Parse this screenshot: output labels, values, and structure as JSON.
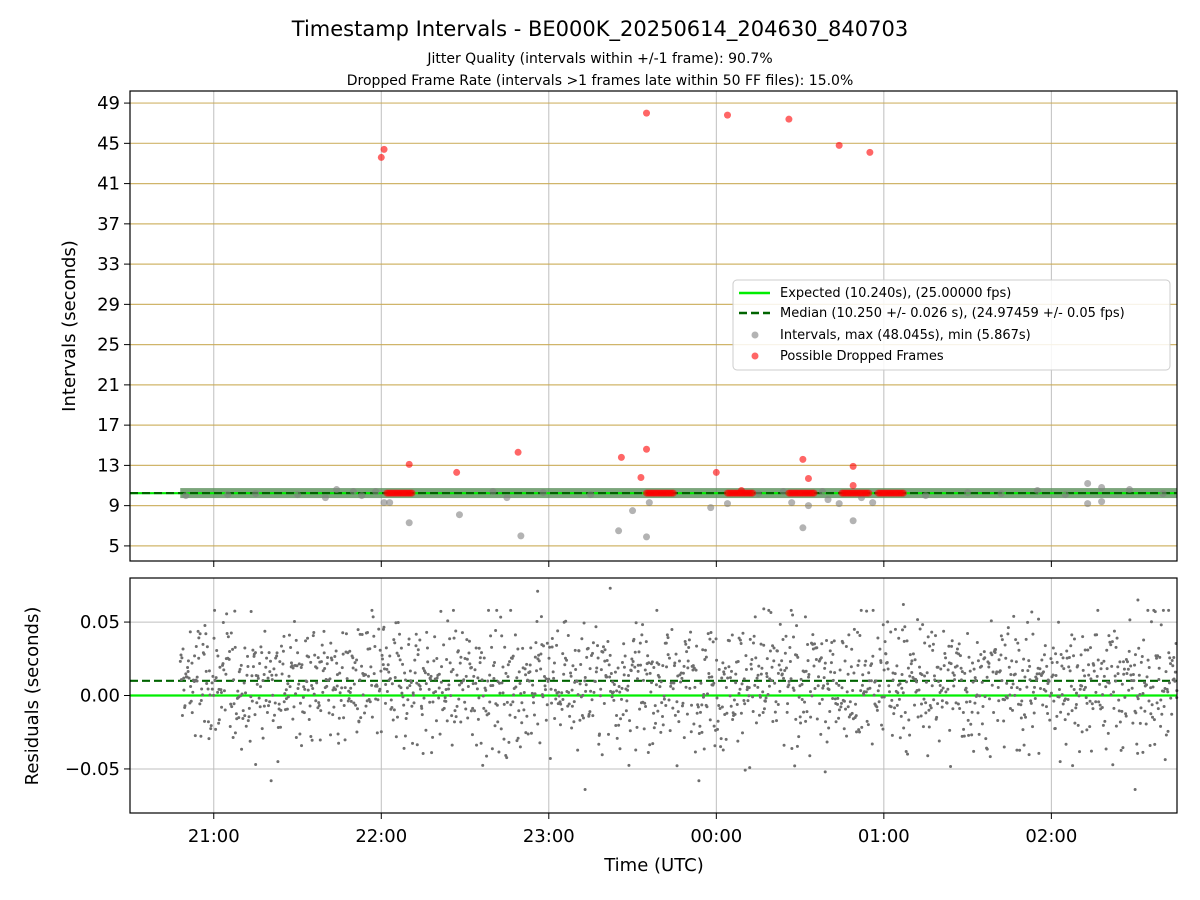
{
  "title": "Timestamp Intervals - BE000K_20250614_204630_840703",
  "subtitle_line1": "Jitter Quality (intervals within +/-1 frame): 90.7%",
  "subtitle_line2": "Dropped Frame Rate (intervals >1 frames late within 50 FF files): 15.0%",
  "colors": {
    "expected": "#00ee00",
    "median": "#006400",
    "intervals": "#808080",
    "dropped": "#ff0000",
    "hgrid_top": "#c8a850",
    "grid": "#bfbfbf"
  },
  "chart_data": [
    {
      "type": "scatter",
      "name": "intervals-panel",
      "ylabel": "Intervals (seconds)",
      "ylim": [
        3.5,
        50.2
      ],
      "xlim_hours": [
        20.5,
        26.75
      ],
      "yticks": [
        5,
        9,
        13,
        17,
        21,
        25,
        29,
        33,
        37,
        41,
        45,
        49
      ],
      "ytick_labels": [
        "5",
        "9",
        "13",
        "17",
        "21",
        "25",
        "29",
        "33",
        "37",
        "41",
        "45",
        "49"
      ],
      "grid": true,
      "legend_position": "center-right",
      "legend": [
        "Expected (10.240s), (25.00000 fps)",
        "Median (10.250 +/- 0.026 s), (24.97459 +/- 0.05 fps)",
        "Intervals, max (48.045s), min (5.867s)",
        "Possible Dropped Frames"
      ],
      "expected_interval": 10.24,
      "median_interval": 10.25,
      "band_x_range": [
        "20:48",
        "02:45"
      ],
      "dense_cluster_value": 10.25,
      "dropped_runs": [
        [
          "22:02",
          "22:11"
        ],
        [
          "23:35",
          "23:45"
        ],
        [
          "00:04",
          "00:13"
        ],
        [
          "00:26",
          "00:35"
        ],
        [
          "00:45",
          "00:55"
        ],
        [
          "00:58",
          "01:07"
        ]
      ],
      "grey_outliers": [
        {
          "x": "20:50",
          "y": 10.0
        },
        {
          "x": "21:05",
          "y": 10.1
        },
        {
          "x": "21:15",
          "y": 10.2
        },
        {
          "x": "21:30",
          "y": 10.1
        },
        {
          "x": "21:40",
          "y": 9.8
        },
        {
          "x": "21:44",
          "y": 10.6
        },
        {
          "x": "21:50",
          "y": 10.4
        },
        {
          "x": "21:53",
          "y": 10.0
        },
        {
          "x": "21:58",
          "y": 10.4
        },
        {
          "x": "22:01",
          "y": 9.3
        },
        {
          "x": "22:03",
          "y": 9.3
        },
        {
          "x": "22:10",
          "y": 7.3
        },
        {
          "x": "22:28",
          "y": 8.1
        },
        {
          "x": "22:40",
          "y": 10.4
        },
        {
          "x": "22:45",
          "y": 9.8
        },
        {
          "x": "22:50",
          "y": 6.0
        },
        {
          "x": "22:58",
          "y": 10.3
        },
        {
          "x": "23:15",
          "y": 10.1
        },
        {
          "x": "23:25",
          "y": 6.5
        },
        {
          "x": "23:30",
          "y": 8.5
        },
        {
          "x": "23:35",
          "y": 5.9
        },
        {
          "x": "23:36",
          "y": 9.3
        },
        {
          "x": "23:58",
          "y": 8.8
        },
        {
          "x": "00:04",
          "y": 9.2
        },
        {
          "x": "00:15",
          "y": 10.2
        },
        {
          "x": "00:24",
          "y": 10.4
        },
        {
          "x": "00:27",
          "y": 9.3
        },
        {
          "x": "00:31",
          "y": 6.8
        },
        {
          "x": "00:33",
          "y": 9.0
        },
        {
          "x": "00:38",
          "y": 10.4
        },
        {
          "x": "00:40",
          "y": 9.6
        },
        {
          "x": "00:44",
          "y": 9.2
        },
        {
          "x": "00:49",
          "y": 7.5
        },
        {
          "x": "00:52",
          "y": 9.8
        },
        {
          "x": "00:56",
          "y": 9.3
        },
        {
          "x": "01:15",
          "y": 10.0
        },
        {
          "x": "01:30",
          "y": 10.3
        },
        {
          "x": "01:42",
          "y": 10.2
        },
        {
          "x": "01:55",
          "y": 10.5
        },
        {
          "x": "02:05",
          "y": 10.1
        },
        {
          "x": "02:13",
          "y": 11.2
        },
        {
          "x": "02:13",
          "y": 9.2
        },
        {
          "x": "02:18",
          "y": 10.8
        },
        {
          "x": "02:18",
          "y": 9.4
        },
        {
          "x": "02:28",
          "y": 10.6
        },
        {
          "x": "02:40",
          "y": 10.2
        }
      ],
      "red_outliers": [
        {
          "x": "22:00",
          "y": 43.6
        },
        {
          "x": "22:01",
          "y": 44.4
        },
        {
          "x": "22:10",
          "y": 13.1
        },
        {
          "x": "22:27",
          "y": 12.3
        },
        {
          "x": "22:49",
          "y": 14.3
        },
        {
          "x": "23:26",
          "y": 13.8
        },
        {
          "x": "23:33",
          "y": 11.8
        },
        {
          "x": "23:35",
          "y": 14.6
        },
        {
          "x": "23:35",
          "y": 48.0
        },
        {
          "x": "00:00",
          "y": 12.3
        },
        {
          "x": "00:04",
          "y": 47.8
        },
        {
          "x": "00:09",
          "y": 10.5
        },
        {
          "x": "00:26",
          "y": 47.4
        },
        {
          "x": "00:31",
          "y": 13.6
        },
        {
          "x": "00:33",
          "y": 11.7
        },
        {
          "x": "00:44",
          "y": 44.8
        },
        {
          "x": "00:49",
          "y": 12.9
        },
        {
          "x": "00:49",
          "y": 11.0
        },
        {
          "x": "00:55",
          "y": 44.1
        }
      ]
    },
    {
      "type": "scatter",
      "name": "residuals-panel",
      "ylabel": "Residuals (seconds)",
      "xlabel": "Time (UTC)",
      "ylim": [
        -0.08,
        0.08
      ],
      "xlim_hours": [
        20.5,
        26.75
      ],
      "yticks": [
        0.05,
        0.0,
        -0.05
      ],
      "ytick_labels": [
        "0.05",
        "0.00",
        "−0.05"
      ],
      "xticks": [
        "21:00",
        "22:00",
        "23:00",
        "00:00",
        "01:00",
        "02:00"
      ],
      "grid": true,
      "expected_residual": 0.0,
      "median_residual": 0.01,
      "residual_points_x_range": [
        "20:48",
        "02:45"
      ],
      "residual_point_count": 1800,
      "residual_spread_std": 0.022,
      "residual_extremes": [
        {
          "x": "21:15",
          "y": -0.047
        },
        {
          "x": "22:56",
          "y": 0.071
        },
        {
          "x": "23:13",
          "y": -0.064
        },
        {
          "x": "23:22",
          "y": 0.073
        },
        {
          "x": "00:17",
          "y": 0.059
        },
        {
          "x": "00:39",
          "y": -0.052
        },
        {
          "x": "01:07",
          "y": 0.062
        },
        {
          "x": "02:31",
          "y": 0.065
        },
        {
          "x": "02:30",
          "y": -0.064
        },
        {
          "x": "02:42",
          "y": 0.058
        }
      ]
    }
  ]
}
